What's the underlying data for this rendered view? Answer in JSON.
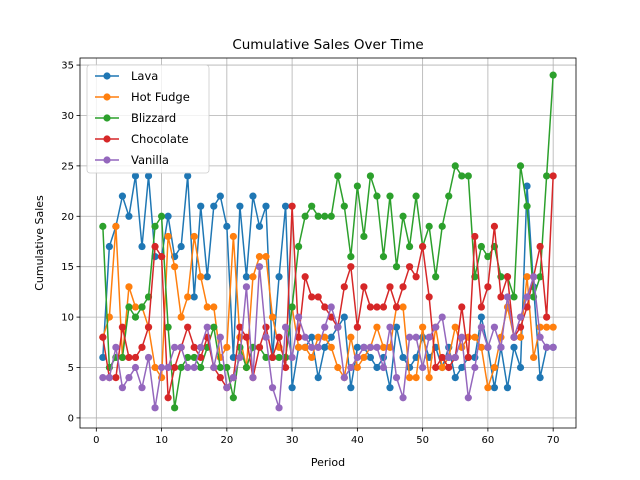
{
  "chart_data": {
    "type": "line",
    "title": "Cumulative Sales Over Time",
    "xlabel": "Period",
    "ylabel": "Cumulative Sales",
    "xlim": [
      -2.5,
      73.5
    ],
    "ylim": [
      -1,
      35.7
    ],
    "xticks": [
      0,
      10,
      20,
      30,
      40,
      50,
      60,
      70
    ],
    "yticks": [
      0,
      5,
      10,
      15,
      20,
      25,
      30,
      35
    ],
    "grid": true,
    "legend": "upper-left",
    "x": [
      1,
      2,
      3,
      4,
      5,
      6,
      7,
      8,
      9,
      10,
      11,
      12,
      13,
      14,
      15,
      16,
      17,
      18,
      19,
      20,
      21,
      22,
      23,
      24,
      25,
      26,
      27,
      28,
      29,
      30,
      31,
      32,
      33,
      34,
      35,
      36,
      37,
      38,
      39,
      40,
      41,
      42,
      43,
      44,
      45,
      46,
      47,
      48,
      49,
      50,
      51,
      52,
      53,
      54,
      55,
      56,
      57,
      58,
      59,
      60,
      61,
      62,
      63,
      64,
      65,
      66,
      67,
      68,
      69,
      70
    ],
    "series": [
      {
        "name": "Lava",
        "color": "#1f77b4",
        "values": [
          6,
          17,
          19,
          22,
          20,
          24,
          17,
          24,
          16,
          16,
          20,
          16,
          17,
          24,
          12,
          21,
          14,
          21,
          22,
          19,
          6,
          21,
          14,
          22,
          19,
          21,
          6,
          14,
          21,
          3,
          7,
          7,
          8,
          4,
          7,
          8,
          9,
          10,
          3,
          7,
          7,
          6,
          5,
          6,
          3,
          9,
          6,
          5,
          6,
          8,
          6,
          7,
          5,
          7,
          4,
          5,
          6,
          6,
          10,
          7,
          3,
          7,
          3,
          7,
          5,
          23,
          13,
          4,
          7,
          7
        ]
      },
      {
        "name": "Hot Fudge",
        "color": "#ff7f0e",
        "values": [
          8,
          10,
          19,
          6,
          13,
          11,
          11,
          9,
          5,
          4,
          18,
          15,
          10,
          12,
          18,
          14,
          11,
          11,
          6,
          7,
          18,
          8,
          5,
          14,
          16,
          16,
          10,
          7,
          6,
          11,
          7,
          7,
          6,
          8,
          8,
          7,
          5,
          4,
          8,
          5,
          6,
          7,
          9,
          7,
          7,
          11,
          11,
          4,
          4,
          9,
          4,
          9,
          5,
          6,
          9,
          7,
          8,
          8,
          7,
          3,
          5,
          8,
          11,
          8,
          8,
          14,
          6,
          9,
          9,
          9
        ]
      },
      {
        "name": "Blizzard",
        "color": "#2ca02c",
        "values": [
          19,
          5,
          6,
          6,
          11,
          10,
          11,
          12,
          19,
          20,
          9,
          1,
          5,
          6,
          6,
          5,
          7,
          9,
          5,
          5,
          2,
          7,
          5,
          7,
          7,
          6,
          6,
          6,
          6,
          11,
          17,
          20,
          21,
          20,
          20,
          20,
          24,
          21,
          16,
          23,
          18,
          24,
          22,
          16,
          22,
          15,
          20,
          17,
          22,
          17,
          19,
          14,
          19,
          22,
          25,
          24,
          24,
          14,
          17,
          16,
          17,
          14,
          14,
          12,
          25,
          21,
          12,
          14,
          24,
          34
        ]
      },
      {
        "name": "Chocolate",
        "color": "#d62728",
        "values": [
          8,
          4,
          4,
          9,
          6,
          6,
          7,
          9,
          17,
          16,
          2,
          5,
          7,
          9,
          7,
          6,
          8,
          5,
          4,
          3,
          4,
          9,
          8,
          4,
          7,
          9,
          6,
          8,
          5,
          21,
          8,
          14,
          12,
          12,
          11,
          10,
          9,
          13,
          15,
          9,
          13,
          11,
          11,
          11,
          13,
          11,
          13,
          15,
          14,
          17,
          12,
          5,
          6,
          5,
          6,
          11,
          6,
          18,
          11,
          13,
          19,
          12,
          14,
          8,
          9,
          11,
          14,
          17,
          10,
          24
        ]
      },
      {
        "name": "Vanilla",
        "color": "#9467bd",
        "values": [
          4,
          4,
          7,
          3,
          4,
          5,
          3,
          6,
          1,
          5,
          5,
          7,
          7,
          5,
          5,
          7,
          9,
          5,
          8,
          3,
          4,
          6,
          13,
          4,
          15,
          8,
          3,
          1,
          9,
          6,
          10,
          8,
          7,
          7,
          9,
          11,
          9,
          4,
          5,
          6,
          7,
          7,
          7,
          5,
          9,
          4,
          2,
          8,
          8,
          5,
          8,
          9,
          10,
          6,
          6,
          8,
          2,
          5,
          9,
          7,
          9,
          7,
          12,
          8,
          10,
          12,
          14,
          8,
          7,
          7
        ]
      }
    ]
  }
}
